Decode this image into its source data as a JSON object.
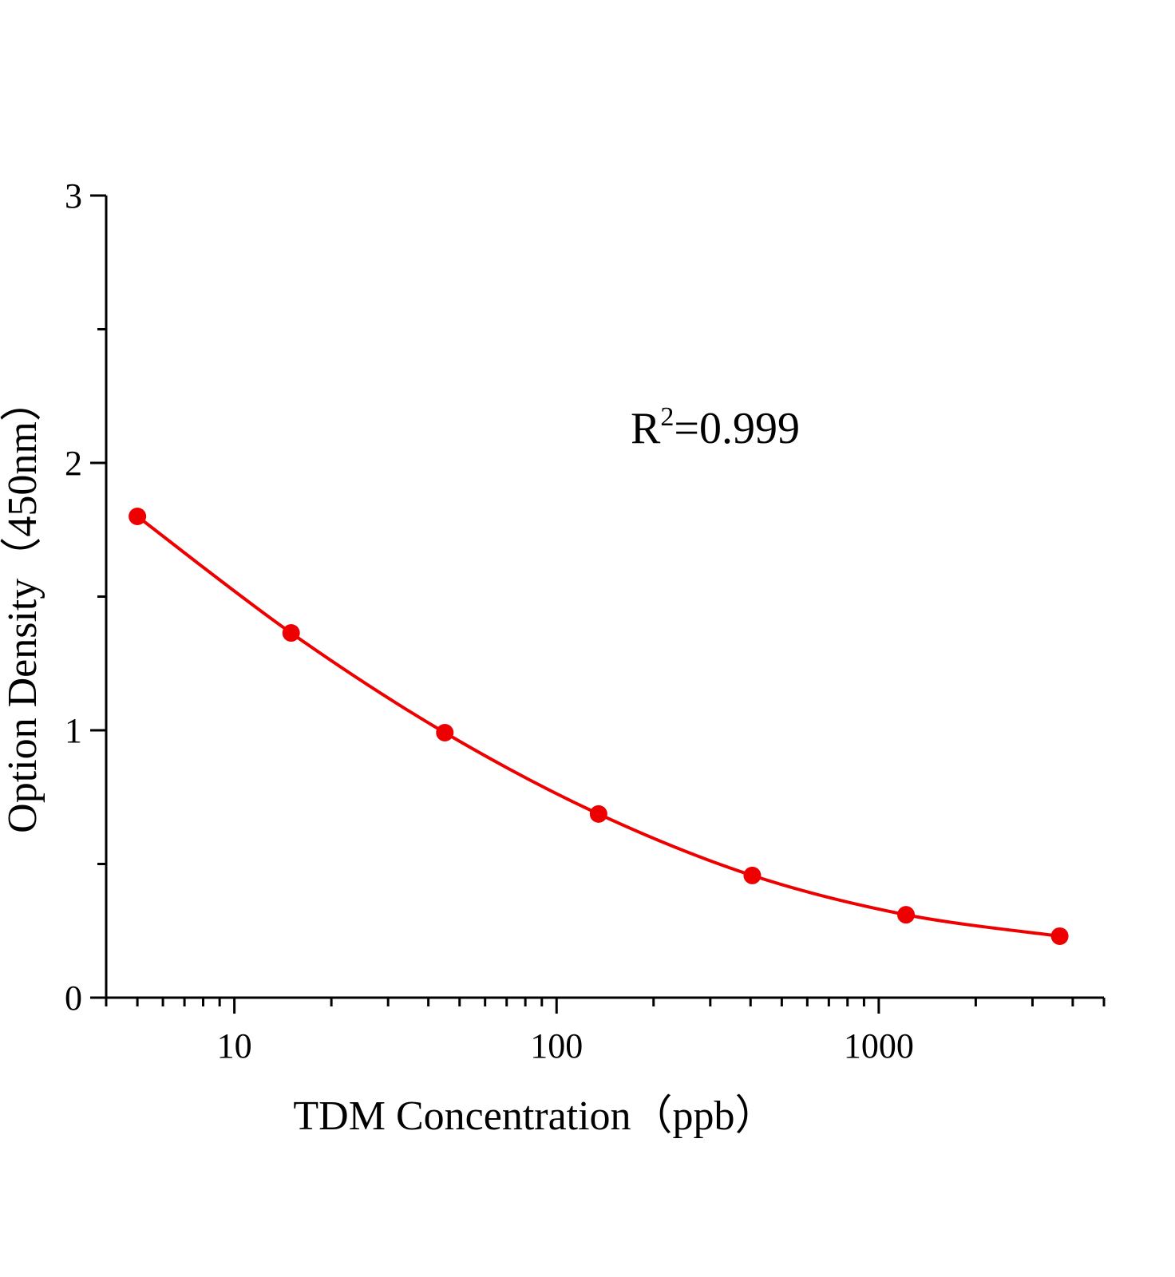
{
  "chart_data": {
    "type": "line",
    "title": "",
    "xlabel": "TDM  Concentration（ppb）",
    "ylabel": "Option Density（450nm）",
    "x_scale": "log",
    "xlim": [
      4,
      5000
    ],
    "ylim": [
      0,
      3
    ],
    "x_ticks": [
      10,
      100,
      1000
    ],
    "x_tick_labels": [
      "10",
      "100",
      "1000"
    ],
    "y_ticks": [
      0,
      1,
      2,
      3
    ],
    "y_tick_labels": [
      "0",
      "1",
      "2",
      "3"
    ],
    "grid": false,
    "annotation": {
      "prefix": "R",
      "sup": "2",
      "suffix": "=0.999"
    },
    "series": [
      {
        "color": "#ee0000",
        "marker": "circle",
        "smooth": true,
        "x": [
          5,
          15,
          45,
          135,
          405,
          1215,
          3645
        ],
        "y": [
          1.8,
          1.364,
          0.991,
          0.687,
          0.457,
          0.31,
          0.23
        ]
      }
    ]
  }
}
